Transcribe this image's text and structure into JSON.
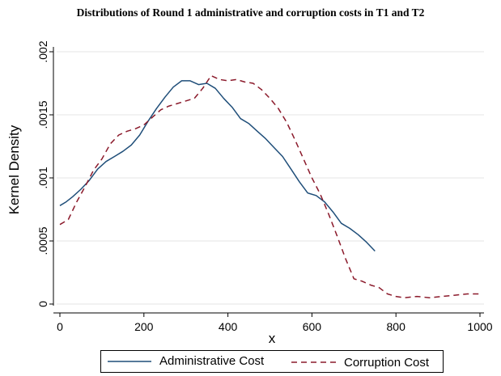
{
  "chart_data": {
    "type": "line",
    "title": "Distributions of Round 1 administrative and corruption costs in T1 and T2",
    "xlabel": "x",
    "ylabel": "Kernel Density",
    "xlim": [
      0,
      1000
    ],
    "ylim": [
      0,
      0.002
    ],
    "x_ticks": [
      0,
      200,
      400,
      600,
      800,
      1000
    ],
    "x_tick_labels": [
      "0",
      "200",
      "400",
      "600",
      "800",
      "1000"
    ],
    "y_ticks": [
      0,
      0.0005,
      0.001,
      0.0015,
      0.002
    ],
    "y_tick_labels": [
      "0",
      ".0005",
      ".001",
      ".0015",
      ".002"
    ],
    "grid": true,
    "legend_position": "bottom",
    "series": [
      {
        "name": "Administrative Cost",
        "color": "#1f4e79",
        "style": "solid",
        "x": [
          0,
          15,
          30,
          50,
          70,
          90,
          110,
          130,
          150,
          170,
          190,
          210,
          230,
          250,
          270,
          290,
          310,
          330,
          350,
          370,
          390,
          410,
          430,
          450,
          470,
          490,
          510,
          530,
          550,
          570,
          590,
          610,
          630,
          650,
          670,
          690,
          710,
          730,
          750
        ],
        "y": [
          0.00078,
          0.00081,
          0.00085,
          0.00091,
          0.00098,
          0.00107,
          0.00113,
          0.00117,
          0.00121,
          0.00126,
          0.00134,
          0.00145,
          0.00155,
          0.00164,
          0.00172,
          0.00177,
          0.00177,
          0.00174,
          0.00175,
          0.00171,
          0.00163,
          0.00156,
          0.00147,
          0.00143,
          0.00137,
          0.00131,
          0.00124,
          0.00117,
          0.00107,
          0.00097,
          0.00088,
          0.00086,
          0.00081,
          0.00073,
          0.00064,
          0.0006,
          0.00055,
          0.00049,
          0.00042
        ]
      },
      {
        "name": "Corruption Cost",
        "color": "#8b1a2b",
        "style": "dashed",
        "x": [
          0,
          20,
          40,
          60,
          80,
          100,
          120,
          140,
          160,
          180,
          200,
          220,
          240,
          260,
          280,
          300,
          320,
          340,
          360,
          380,
          400,
          420,
          440,
          460,
          480,
          500,
          520,
          540,
          560,
          580,
          600,
          620,
          640,
          660,
          680,
          700,
          720,
          740,
          760,
          780,
          800,
          820,
          850,
          880,
          910,
          940,
          970,
          1000
        ],
        "y": [
          0.00063,
          0.00067,
          0.00081,
          0.00093,
          0.00106,
          0.00115,
          0.00127,
          0.00134,
          0.00137,
          0.00139,
          0.00142,
          0.00148,
          0.00154,
          0.00157,
          0.00159,
          0.00161,
          0.00163,
          0.00171,
          0.00181,
          0.00178,
          0.00177,
          0.00178,
          0.00176,
          0.00175,
          0.0017,
          0.00163,
          0.00155,
          0.00144,
          0.0013,
          0.00115,
          0.001,
          0.00087,
          0.00071,
          0.00054,
          0.00036,
          0.0002,
          0.00018,
          0.00015,
          0.00013,
          8e-05,
          6e-05,
          5e-05,
          6e-05,
          5e-05,
          6e-05,
          7e-05,
          8e-05,
          8e-05
        ]
      }
    ]
  }
}
